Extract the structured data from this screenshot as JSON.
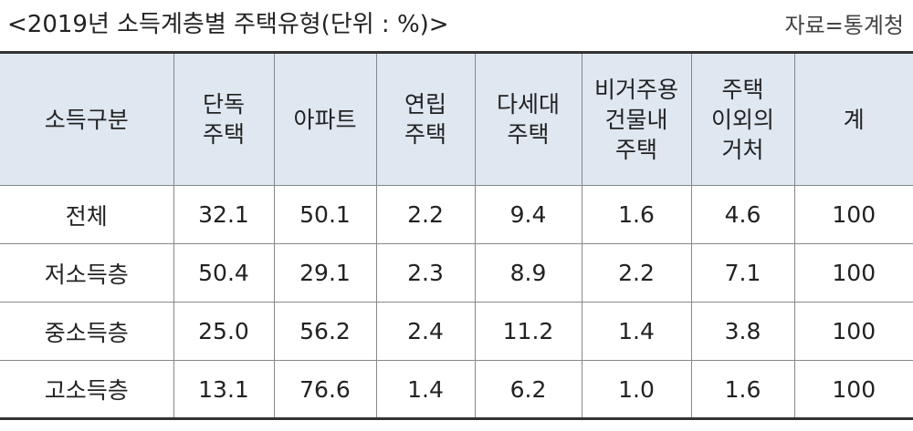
{
  "header": {
    "title": "<2019년 소득계층별 주택유형(단위 : %)>",
    "source": "자료=통계청"
  },
  "table": {
    "columns": [
      [
        "소득구분"
      ],
      [
        "단독",
        "주택"
      ],
      [
        "아파트"
      ],
      [
        "연립",
        "주택"
      ],
      [
        "다세대",
        "주택"
      ],
      [
        "비거주용",
        "건물내",
        "주택"
      ],
      [
        "주택",
        "이외의",
        "거처"
      ],
      [
        "계"
      ]
    ],
    "rows": [
      [
        "전체",
        "32.1",
        "50.1",
        "2.2",
        "9.4",
        "1.6",
        "4.6",
        "100"
      ],
      [
        "저소득층",
        "50.4",
        "29.1",
        "2.3",
        "8.9",
        "2.2",
        "7.1",
        "100"
      ],
      [
        "중소득층",
        "25.0",
        "56.2",
        "2.4",
        "11.2",
        "1.4",
        "3.8",
        "100"
      ],
      [
        "고소득층",
        "13.1",
        "76.6",
        "1.4",
        "6.2",
        "1.0",
        "1.6",
        "100"
      ]
    ]
  }
}
